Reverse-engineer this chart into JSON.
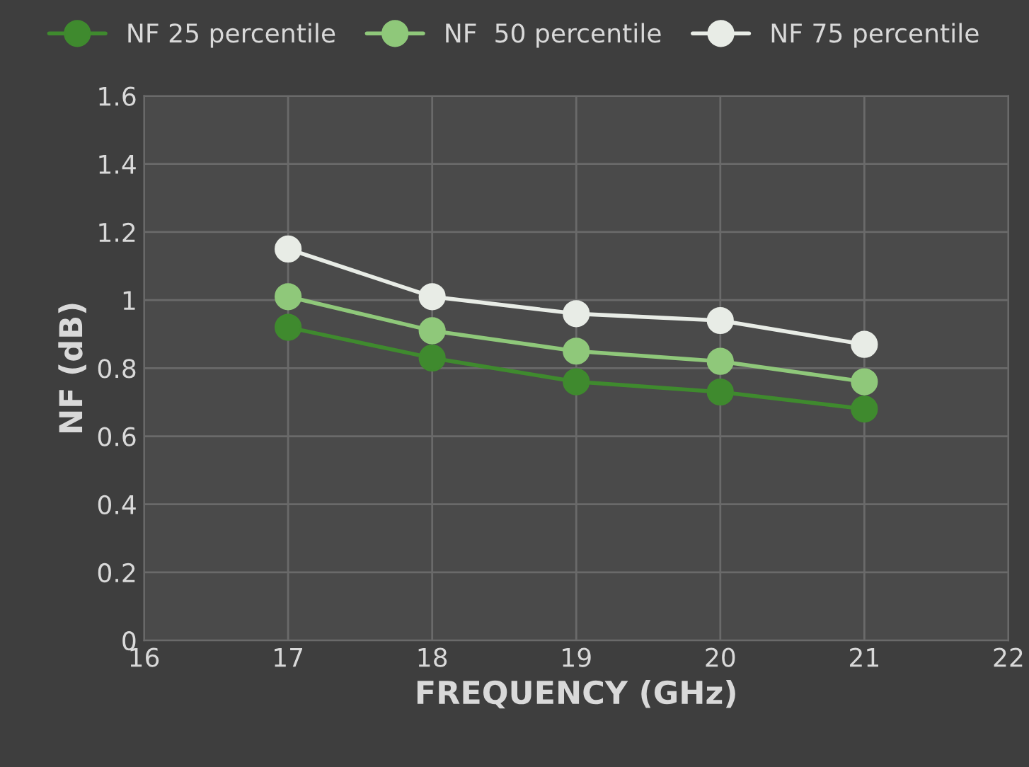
{
  "chart_data": {
    "type": "line",
    "xlabel": "FREQUENCY (GHz)",
    "ylabel": "NF (dB)",
    "x": [
      17,
      18,
      19,
      20,
      21
    ],
    "series": [
      {
        "name": "NF 25 percentile",
        "color": "#3f8a2e",
        "values": [
          0.92,
          0.83,
          0.76,
          0.73,
          0.68
        ]
      },
      {
        "name": "NF  50 percentile",
        "color": "#8fc87a",
        "values": [
          1.01,
          0.91,
          0.85,
          0.82,
          0.76
        ]
      },
      {
        "name": "NF 75 percentile",
        "color": "#e8ece6",
        "values": [
          1.15,
          1.01,
          0.96,
          0.94,
          0.87
        ]
      }
    ],
    "xlim": [
      16,
      22
    ],
    "xticks": [
      16,
      17,
      18,
      19,
      20,
      21,
      22
    ],
    "ylim": [
      0,
      1.6
    ],
    "yticks": [
      0,
      0.2,
      0.4,
      0.6,
      0.8,
      1,
      1.2,
      1.4,
      1.6
    ],
    "grid": true,
    "legend": "top",
    "marker": "circle",
    "line_style": "solid"
  }
}
